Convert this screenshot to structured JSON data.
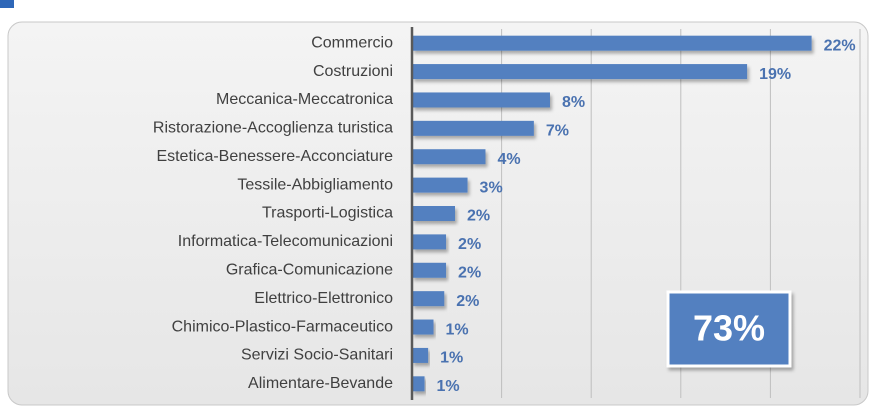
{
  "chart_data": {
    "type": "barh",
    "categories": [
      "Commercio",
      "Costruzioni",
      "Meccanica-Meccatronica",
      "Ristorazione-Accoglienza turistica",
      "Estetica-Benessere-Acconciature",
      "Tessile-Abbigliamento",
      "Trasporti-Logistica",
      "Informatica-Telecomunicazioni",
      "Grafica-Comunicazione",
      "Elettrico-Elettronico",
      "Chimico-Plastico-Farmaceutico",
      "Servizi Socio-Sanitari",
      "Alimentare-Bevande"
    ],
    "values": [
      22.3,
      18.7,
      7.7,
      6.8,
      4.1,
      3.1,
      2.4,
      1.9,
      1.9,
      1.8,
      1.2,
      0.9,
      0.7
    ],
    "value_labels": [
      "22%",
      "19%",
      "8%",
      "7%",
      "4%",
      "3%",
      "2%",
      "2%",
      "2%",
      "2%",
      "1%",
      "1%",
      "1%"
    ],
    "color": "#5280c0",
    "xlim": [
      0,
      25
    ],
    "xticks": [
      0,
      5,
      10,
      15,
      20,
      25
    ],
    "grid": true,
    "annotation": "73%"
  }
}
